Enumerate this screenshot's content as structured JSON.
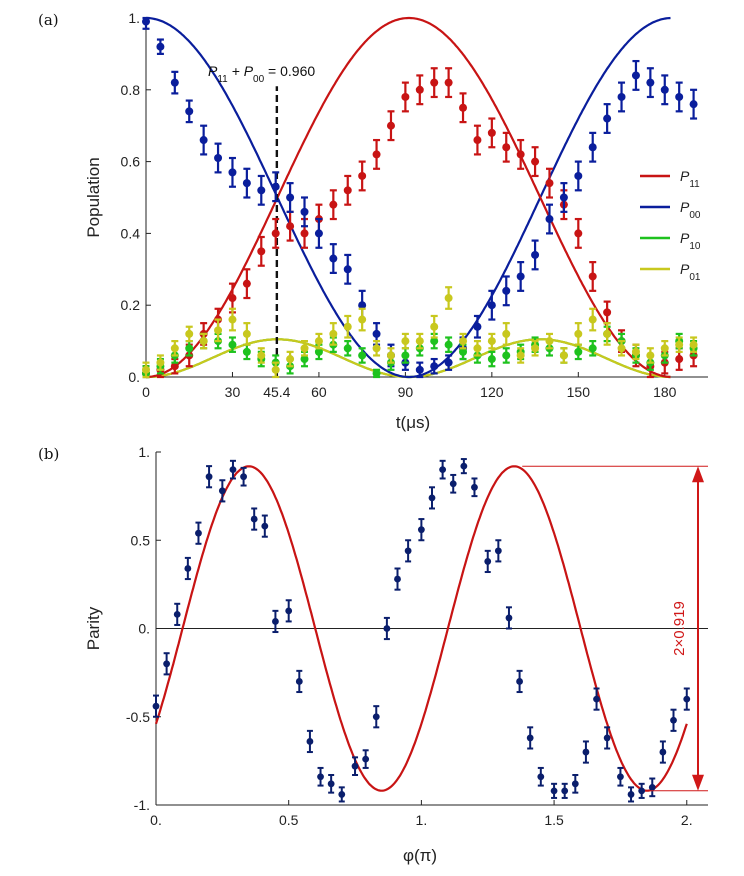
{
  "chart_data": [
    {
      "panel": "(a)",
      "type": "scatter",
      "xlabel": "t(μs)",
      "ylabel": "Population",
      "xlim": [
        0,
        195
      ],
      "ylim": [
        0,
        1
      ],
      "x_ticks": [
        "0",
        "30",
        "45.4",
        "60",
        "90",
        "120",
        "150",
        "180"
      ],
      "x_tick_values": [
        0,
        30,
        45.4,
        60,
        90,
        120,
        150,
        180
      ],
      "y_ticks": [
        "0.",
        "0.2",
        "0.4",
        "0.6",
        "0.8",
        "1."
      ],
      "y_tick_values": [
        0,
        0.2,
        0.4,
        0.6,
        0.8,
        1.0
      ],
      "annotation": {
        "text_parts": [
          "P",
          "11",
          " + P",
          "00",
          " = 0.960"
        ],
        "x": 45.4,
        "dashed_line_y": [
          0,
          0.81
        ]
      },
      "legend": {
        "placement": "right",
        "entries": [
          {
            "base": "P",
            "sub": "11",
            "color": "#c81414"
          },
          {
            "base": "P",
            "sub": "00",
            "color": "#0a1e9c"
          },
          {
            "base": "P",
            "sub": "10",
            "color": "#1ec21e"
          },
          {
            "base": "P",
            "sub": "01",
            "color": "#c8c81e"
          }
        ]
      },
      "fits": {
        "P11": {
          "color": "#c81414",
          "amplitude": 1.0,
          "period": 91.2
        },
        "P00": {
          "color": "#0a1e9c",
          "amplitude": 1.0,
          "period": 91.2
        },
        "P10": {
          "color": "#1ec21e",
          "amplitude": 0.1,
          "period": 91.2
        },
        "P01": {
          "color": "#c8c81e",
          "amplitude": 0.1,
          "period": 91.2
        }
      },
      "series": [
        {
          "name": "P11",
          "color": "#c81414",
          "x": [
            0,
            5,
            10,
            15,
            20,
            25,
            30,
            35,
            40,
            45,
            50,
            55,
            60,
            65,
            70,
            75,
            80,
            85,
            90,
            95,
            100,
            105,
            110,
            115,
            120,
            125,
            130,
            135,
            140,
            145,
            150,
            155,
            160,
            165,
            170,
            175,
            180,
            185,
            190
          ],
          "y": [
            0.01,
            0.02,
            0.03,
            0.06,
            0.12,
            0.16,
            0.22,
            0.26,
            0.35,
            0.4,
            0.42,
            0.4,
            0.44,
            0.48,
            0.52,
            0.56,
            0.62,
            0.7,
            0.78,
            0.8,
            0.82,
            0.82,
            0.75,
            0.66,
            0.68,
            0.64,
            0.62,
            0.6,
            0.54,
            0.48,
            0.4,
            0.28,
            0.18,
            0.1,
            0.06,
            0.03,
            0.04,
            0.05,
            0.06
          ],
          "err": [
            0.02,
            0.02,
            0.02,
            0.03,
            0.03,
            0.03,
            0.04,
            0.04,
            0.04,
            0.04,
            0.04,
            0.04,
            0.04,
            0.04,
            0.04,
            0.04,
            0.04,
            0.04,
            0.04,
            0.04,
            0.04,
            0.04,
            0.04,
            0.04,
            0.04,
            0.04,
            0.04,
            0.04,
            0.04,
            0.04,
            0.04,
            0.04,
            0.03,
            0.03,
            0.03,
            0.03,
            0.03,
            0.03,
            0.03
          ]
        },
        {
          "name": "P00",
          "color": "#0a1e9c",
          "x": [
            0,
            5,
            10,
            15,
            20,
            25,
            30,
            35,
            40,
            45,
            50,
            55,
            60,
            65,
            70,
            75,
            80,
            85,
            90,
            95,
            100,
            105,
            110,
            115,
            120,
            125,
            130,
            135,
            140,
            145,
            150,
            155,
            160,
            165,
            170,
            175,
            180,
            185,
            190
          ],
          "y": [
            0.99,
            0.92,
            0.82,
            0.74,
            0.66,
            0.61,
            0.57,
            0.54,
            0.52,
            0.53,
            0.5,
            0.46,
            0.4,
            0.33,
            0.3,
            0.2,
            0.12,
            0.06,
            0.04,
            0.02,
            0.03,
            0.04,
            0.08,
            0.14,
            0.2,
            0.24,
            0.28,
            0.34,
            0.44,
            0.5,
            0.56,
            0.64,
            0.72,
            0.78,
            0.84,
            0.82,
            0.8,
            0.78,
            0.76
          ],
          "err": [
            0.02,
            0.02,
            0.03,
            0.03,
            0.04,
            0.04,
            0.04,
            0.04,
            0.04,
            0.04,
            0.04,
            0.04,
            0.04,
            0.04,
            0.04,
            0.04,
            0.03,
            0.03,
            0.02,
            0.02,
            0.02,
            0.02,
            0.03,
            0.03,
            0.04,
            0.04,
            0.04,
            0.04,
            0.04,
            0.04,
            0.04,
            0.04,
            0.04,
            0.04,
            0.04,
            0.04,
            0.04,
            0.04,
            0.04
          ]
        },
        {
          "name": "P10",
          "color": "#1ec21e",
          "x": [
            0,
            5,
            10,
            15,
            20,
            25,
            30,
            35,
            40,
            45,
            50,
            55,
            60,
            65,
            70,
            75,
            80,
            85,
            90,
            95,
            100,
            105,
            110,
            115,
            120,
            125,
            130,
            135,
            140,
            145,
            150,
            155,
            160,
            165,
            170,
            175,
            180,
            185,
            190
          ],
          "y": [
            0.01,
            0.03,
            0.06,
            0.08,
            0.1,
            0.1,
            0.09,
            0.07,
            0.05,
            0.04,
            0.03,
            0.05,
            0.07,
            0.09,
            0.08,
            0.06,
            0.01,
            0.04,
            0.06,
            0.08,
            0.1,
            0.09,
            0.07,
            0.06,
            0.05,
            0.06,
            0.07,
            0.09,
            0.08,
            0.06,
            0.07,
            0.08,
            0.12,
            0.1,
            0.06,
            0.04,
            0.06,
            0.1,
            0.08
          ],
          "err": [
            0.02,
            0.02,
            0.02,
            0.02,
            0.02,
            0.02,
            0.02,
            0.02,
            0.02,
            0.02,
            0.02,
            0.02,
            0.02,
            0.02,
            0.02,
            0.02,
            0.01,
            0.02,
            0.02,
            0.02,
            0.02,
            0.02,
            0.02,
            0.02,
            0.02,
            0.02,
            0.02,
            0.02,
            0.02,
            0.02,
            0.02,
            0.02,
            0.02,
            0.02,
            0.02,
            0.02,
            0.02,
            0.02,
            0.02
          ]
        },
        {
          "name": "P01",
          "color": "#c8c81e",
          "x": [
            0,
            5,
            10,
            15,
            20,
            25,
            30,
            35,
            40,
            45,
            50,
            55,
            60,
            65,
            70,
            75,
            80,
            85,
            90,
            95,
            100,
            105,
            110,
            115,
            120,
            125,
            130,
            135,
            140,
            145,
            150,
            155,
            160,
            165,
            170,
            175,
            180,
            185,
            190
          ],
          "y": [
            0.02,
            0.04,
            0.08,
            0.12,
            0.1,
            0.13,
            0.16,
            0.12,
            0.06,
            0.02,
            0.05,
            0.08,
            0.1,
            0.12,
            0.14,
            0.16,
            0.08,
            0.06,
            0.1,
            0.1,
            0.14,
            0.22,
            0.1,
            0.08,
            0.1,
            0.12,
            0.06,
            0.08,
            0.1,
            0.06,
            0.12,
            0.16,
            0.12,
            0.08,
            0.07,
            0.06,
            0.08,
            0.09,
            0.09
          ],
          "err": [
            0.02,
            0.02,
            0.02,
            0.02,
            0.02,
            0.03,
            0.03,
            0.03,
            0.02,
            0.02,
            0.02,
            0.02,
            0.02,
            0.03,
            0.03,
            0.03,
            0.02,
            0.02,
            0.02,
            0.02,
            0.03,
            0.03,
            0.02,
            0.02,
            0.02,
            0.03,
            0.02,
            0.02,
            0.02,
            0.02,
            0.03,
            0.03,
            0.03,
            0.02,
            0.02,
            0.02,
            0.02,
            0.02,
            0.02
          ]
        }
      ]
    },
    {
      "panel": "(b)",
      "type": "scatter",
      "xlabel": "φ(π)",
      "ylabel": "Parity",
      "xlim": [
        0,
        2.08
      ],
      "ylim": [
        -1,
        1
      ],
      "x_ticks": [
        "0.",
        "0.5",
        "1.",
        "1.5",
        "2."
      ],
      "x_tick_values": [
        0,
        0.5,
        1.0,
        1.5,
        2.0
      ],
      "y_ticks": [
        "-1.",
        "-0.5",
        "0.",
        "0.5",
        "1."
      ],
      "y_tick_values": [
        -1,
        -0.5,
        0,
        0.5,
        1
      ],
      "fit": {
        "color": "#c81414",
        "amplitude": 0.919,
        "period": 1.0,
        "phase_max_at": 0.35
      },
      "annotation": {
        "text": "2×0.919",
        "color": "#d01818",
        "y_range": [
          -0.919,
          0.919
        ]
      },
      "series": [
        {
          "name": "Parity",
          "color": "#0a1e6c",
          "x": [
            0.0,
            0.04,
            0.08,
            0.12,
            0.16,
            0.2,
            0.25,
            0.29,
            0.33,
            0.37,
            0.41,
            0.45,
            0.5,
            0.54,
            0.58,
            0.62,
            0.66,
            0.7,
            0.75,
            0.79,
            0.83,
            0.87,
            0.91,
            0.95,
            1.0,
            1.04,
            1.08,
            1.12,
            1.16,
            1.2,
            1.25,
            1.29,
            1.33,
            1.37,
            1.41,
            1.45,
            1.5,
            1.54,
            1.58,
            1.62,
            1.66,
            1.7,
            1.75,
            1.79,
            1.83,
            1.87,
            1.91,
            1.95,
            2.0
          ],
          "y": [
            -0.44,
            -0.2,
            0.08,
            0.34,
            0.54,
            0.86,
            0.78,
            0.9,
            0.86,
            0.62,
            0.58,
            0.04,
            0.1,
            -0.3,
            -0.64,
            -0.84,
            -0.88,
            -0.94,
            -0.78,
            -0.74,
            -0.5,
            0.0,
            0.28,
            0.44,
            0.56,
            0.74,
            0.9,
            0.82,
            0.92,
            0.8,
            0.38,
            0.44,
            0.06,
            -0.3,
            -0.62,
            -0.84,
            -0.92,
            -0.92,
            -0.88,
            -0.7,
            -0.4,
            -0.62,
            -0.84,
            -0.94,
            -0.92,
            -0.9,
            -0.7,
            -0.52,
            -0.4
          ],
          "err": [
            0.06,
            0.06,
            0.06,
            0.06,
            0.06,
            0.06,
            0.06,
            0.05,
            0.05,
            0.06,
            0.06,
            0.06,
            0.06,
            0.06,
            0.06,
            0.05,
            0.05,
            0.04,
            0.05,
            0.05,
            0.06,
            0.06,
            0.06,
            0.06,
            0.06,
            0.06,
            0.05,
            0.05,
            0.04,
            0.05,
            0.06,
            0.06,
            0.06,
            0.06,
            0.06,
            0.05,
            0.04,
            0.04,
            0.05,
            0.06,
            0.06,
            0.06,
            0.05,
            0.04,
            0.04,
            0.05,
            0.06,
            0.06,
            0.06
          ]
        }
      ]
    }
  ]
}
